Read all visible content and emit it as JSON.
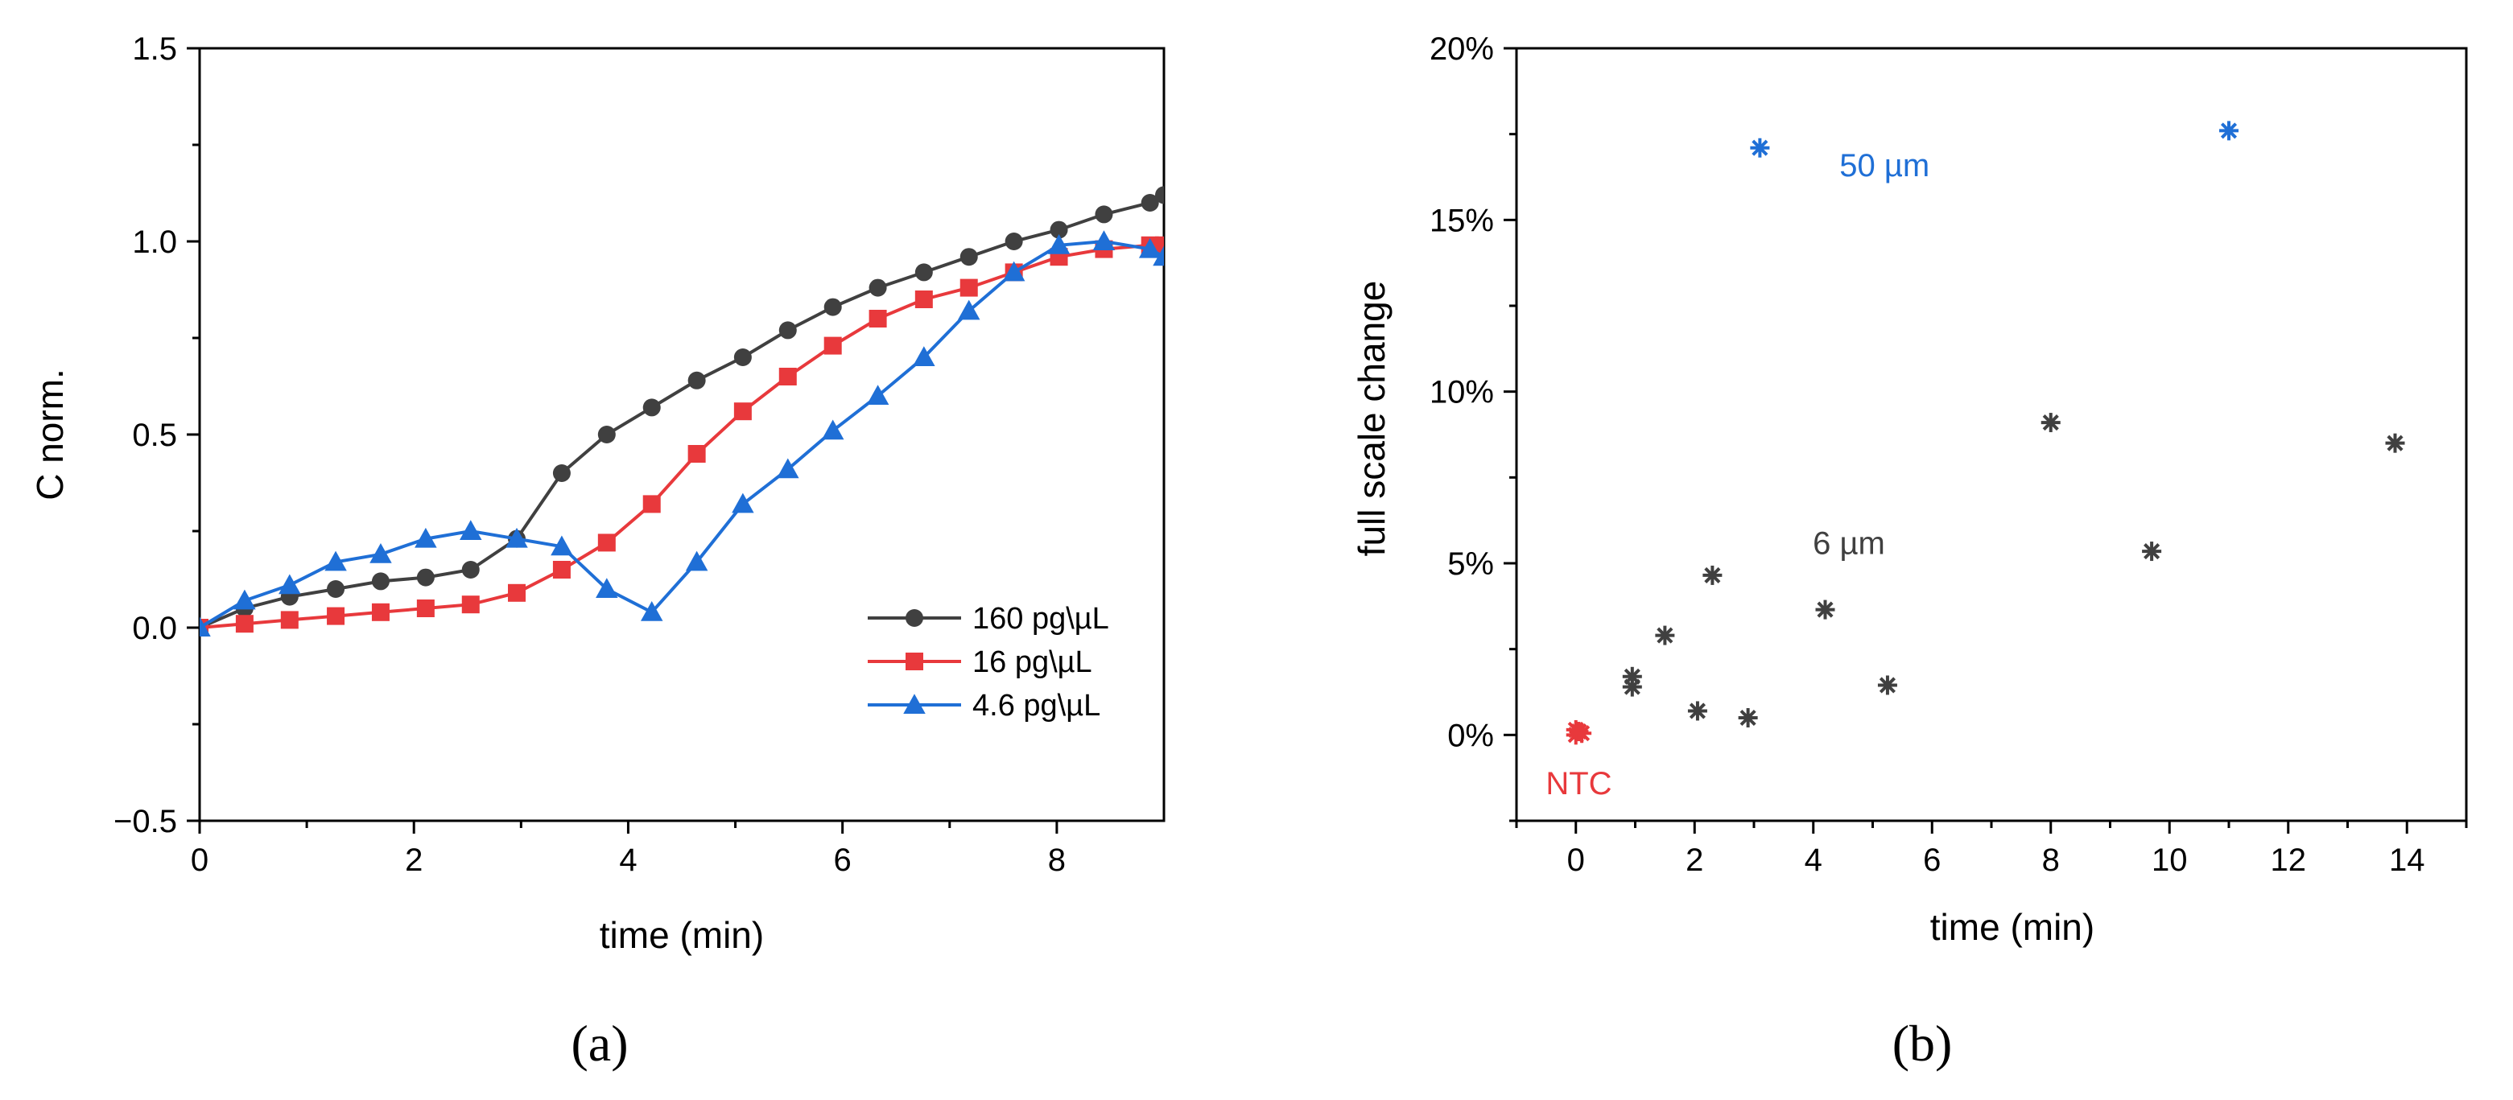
{
  "panels": {
    "a": "(a)",
    "b": "(b)"
  },
  "chart_data": [
    {
      "type": "line",
      "xlabel": "time (min)",
      "ylabel": "C norm.",
      "xlim": [
        0,
        9
      ],
      "ylim": [
        -0.5,
        1.5
      ],
      "xticks": [
        0,
        2,
        4,
        6,
        8
      ],
      "yticks": [
        -0.5,
        0.0,
        0.5,
        1.0,
        1.5
      ],
      "ytick_labels": [
        "−0.5",
        "0.0",
        "0.5",
        "1.0",
        "1.5"
      ],
      "grid": false,
      "legend_position": "lower-right",
      "series": [
        {
          "name": "160 pg\\µL",
          "color": "#404040",
          "marker": "circle",
          "x": [
            0,
            0.42,
            0.84,
            1.27,
            1.69,
            2.11,
            2.53,
            2.96,
            3.38,
            3.8,
            4.22,
            4.64,
            5.07,
            5.49,
            5.91,
            6.33,
            6.76,
            7.18,
            7.6,
            8.02,
            8.44,
            8.87,
            9.0
          ],
          "y": [
            0,
            0.05,
            0.08,
            0.1,
            0.12,
            0.13,
            0.15,
            0.23,
            0.4,
            0.5,
            0.57,
            0.64,
            0.7,
            0.77,
            0.83,
            0.88,
            0.92,
            0.96,
            1.0,
            1.03,
            1.07,
            1.1,
            1.12
          ]
        },
        {
          "name": "16 pg\\µL",
          "color": "#e8393c",
          "marker": "square",
          "x": [
            0,
            0.42,
            0.84,
            1.27,
            1.69,
            2.11,
            2.53,
            2.96,
            3.38,
            3.8,
            4.22,
            4.64,
            5.07,
            5.49,
            5.91,
            6.33,
            6.76,
            7.18,
            7.6,
            8.02,
            8.44,
            8.87,
            9.0
          ],
          "y": [
            0,
            0.01,
            0.02,
            0.03,
            0.04,
            0.05,
            0.06,
            0.09,
            0.15,
            0.22,
            0.32,
            0.45,
            0.56,
            0.65,
            0.73,
            0.8,
            0.85,
            0.88,
            0.92,
            0.96,
            0.98,
            0.99,
            0.99
          ]
        },
        {
          "name": "4.6 pg\\µL",
          "color": "#1f6fd6",
          "marker": "triangle",
          "x": [
            0,
            0.42,
            0.84,
            1.27,
            1.69,
            2.11,
            2.53,
            2.96,
            3.38,
            3.8,
            4.22,
            4.64,
            5.07,
            5.49,
            5.91,
            6.33,
            6.76,
            7.18,
            7.6,
            8.02,
            8.44,
            8.87,
            9.0
          ],
          "y": [
            0,
            0.07,
            0.11,
            0.17,
            0.19,
            0.23,
            0.25,
            0.23,
            0.21,
            0.1,
            0.04,
            0.17,
            0.32,
            0.41,
            0.51,
            0.6,
            0.7,
            0.82,
            0.92,
            0.99,
            1.0,
            0.98,
            0.96
          ]
        }
      ]
    },
    {
      "type": "scatter",
      "xlabel": "time (min)",
      "ylabel": "full scale change",
      "xlim": [
        -1,
        15
      ],
      "ylim": [
        -2.5,
        20
      ],
      "xticks": [
        0,
        2,
        4,
        6,
        8,
        10,
        12,
        14
      ],
      "yticks": [
        0,
        5,
        10,
        15,
        20
      ],
      "ytick_labels": [
        "0%",
        "5%",
        "10%",
        "15%",
        "20%"
      ],
      "grid": false,
      "series": [
        {
          "color": "#e8393c",
          "marker": "asterisk",
          "x": [
            0.0,
            0.05,
            0.1,
            0.0
          ],
          "y": [
            0.0,
            0.1,
            0.05,
            0.15
          ]
        },
        {
          "color": "#404040",
          "marker": "asterisk",
          "x": [
            0.95,
            0.95,
            1.5,
            2.05,
            2.3,
            2.9,
            4.2,
            5.25,
            8.0,
            9.7,
            13.8
          ],
          "y": [
            1.7,
            1.4,
            2.9,
            0.7,
            4.65,
            0.5,
            3.65,
            1.45,
            9.1,
            5.35,
            8.5
          ]
        },
        {
          "color": "#1f6fd6",
          "marker": "asterisk",
          "x": [
            3.1,
            11.0
          ],
          "y": [
            17.1,
            17.6
          ]
        }
      ],
      "annotations": [
        {
          "text": "NTC",
          "color": "#e8393c",
          "x": 0.05,
          "y": -1.4
        },
        {
          "text": "6 µm",
          "color": "#404040",
          "x": 4.6,
          "y": 5.6
        },
        {
          "text": "50 µm",
          "color": "#1f6fd6",
          "x": 5.2,
          "y": 16.6
        }
      ]
    }
  ]
}
